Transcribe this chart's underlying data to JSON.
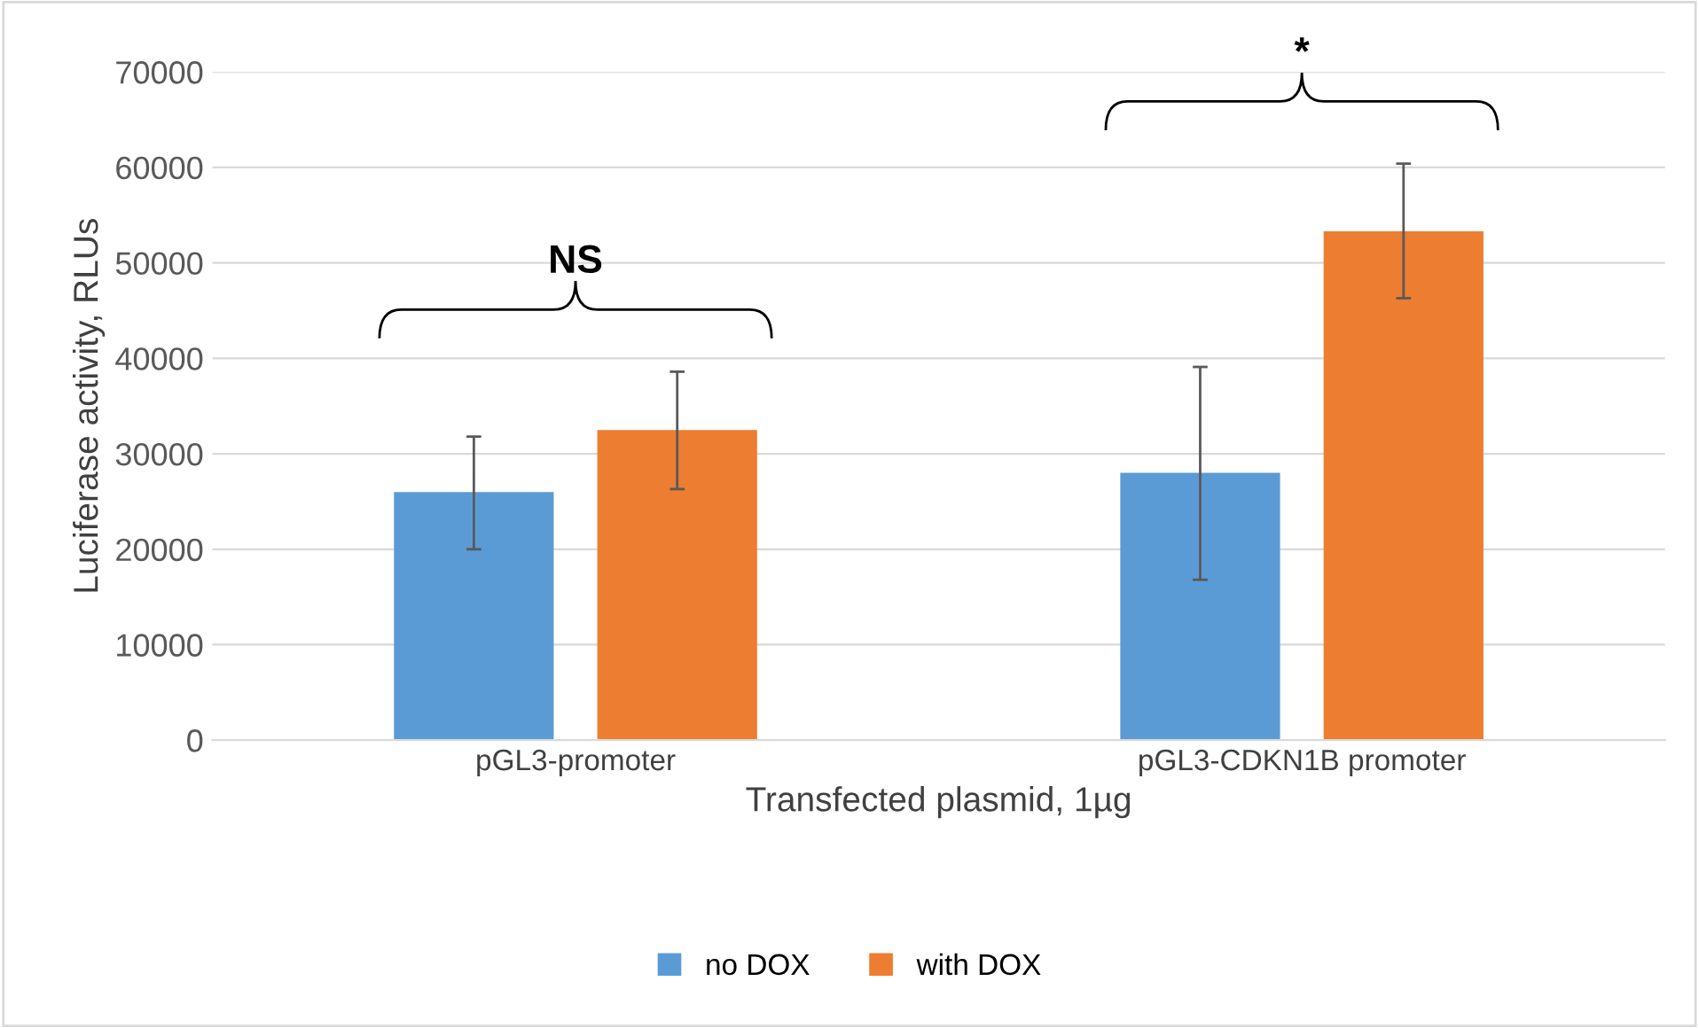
{
  "chart_data": {
    "type": "bar",
    "xlabel": "Transfected plasmid, 1µg",
    "ylabel": "Luciferase activity, RLUs",
    "categories": [
      "pGL3-promoter",
      "pGL3-CDKN1B promoter"
    ],
    "series": [
      {
        "name": "no DOX",
        "color": "#5b9bd5",
        "values": [
          26000,
          28000
        ],
        "errors": [
          [
            20000,
            31800
          ],
          [
            16800,
            39100
          ]
        ]
      },
      {
        "name": "with DOX",
        "color": "#ed7d31",
        "values": [
          32500,
          53300
        ],
        "errors": [
          [
            26300,
            38600
          ],
          [
            46300,
            60400
          ]
        ]
      }
    ],
    "ylim": [
      0,
      70000
    ],
    "yticks": [
      0,
      10000,
      20000,
      30000,
      40000,
      50000,
      60000,
      70000
    ],
    "grid": "y",
    "legend": "bottom",
    "annotations": [
      "NS",
      "*"
    ]
  }
}
